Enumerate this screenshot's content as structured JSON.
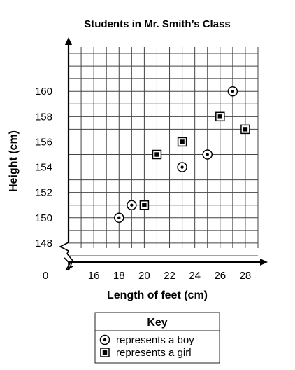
{
  "chart_data": {
    "type": "scatter",
    "title": "Students in Mr. Smith’s Class",
    "xlabel": "Length of feet (cm)",
    "ylabel": "Height (cm)",
    "origin_label": "0",
    "x_ticks": [
      16,
      18,
      20,
      22,
      24,
      26,
      28
    ],
    "y_ticks": [
      148,
      150,
      152,
      154,
      156,
      158,
      160
    ],
    "xlim": [
      14,
      29
    ],
    "ylim": [
      146.5,
      163.5
    ],
    "grid": true,
    "axis_break": true,
    "series": [
      {
        "key": "boy",
        "marker": "circle-dot",
        "points": [
          {
            "x": 18,
            "y": 150
          },
          {
            "x": 19,
            "y": 151
          },
          {
            "x": 23,
            "y": 154
          },
          {
            "x": 25,
            "y": 155
          },
          {
            "x": 27,
            "y": 160
          }
        ]
      },
      {
        "key": "girl",
        "marker": "square-dot",
        "points": [
          {
            "x": 20,
            "y": 151
          },
          {
            "x": 21,
            "y": 155
          },
          {
            "x": 23,
            "y": 156
          },
          {
            "x": 26,
            "y": 158
          },
          {
            "x": 28,
            "y": 157
          }
        ]
      }
    ],
    "legend": {
      "title": "Key",
      "placement": "bottom-center",
      "entries": [
        {
          "marker": "circle-dot",
          "label": "represents a boy"
        },
        {
          "marker": "square-dot",
          "label": "represents a girl"
        }
      ]
    }
  }
}
